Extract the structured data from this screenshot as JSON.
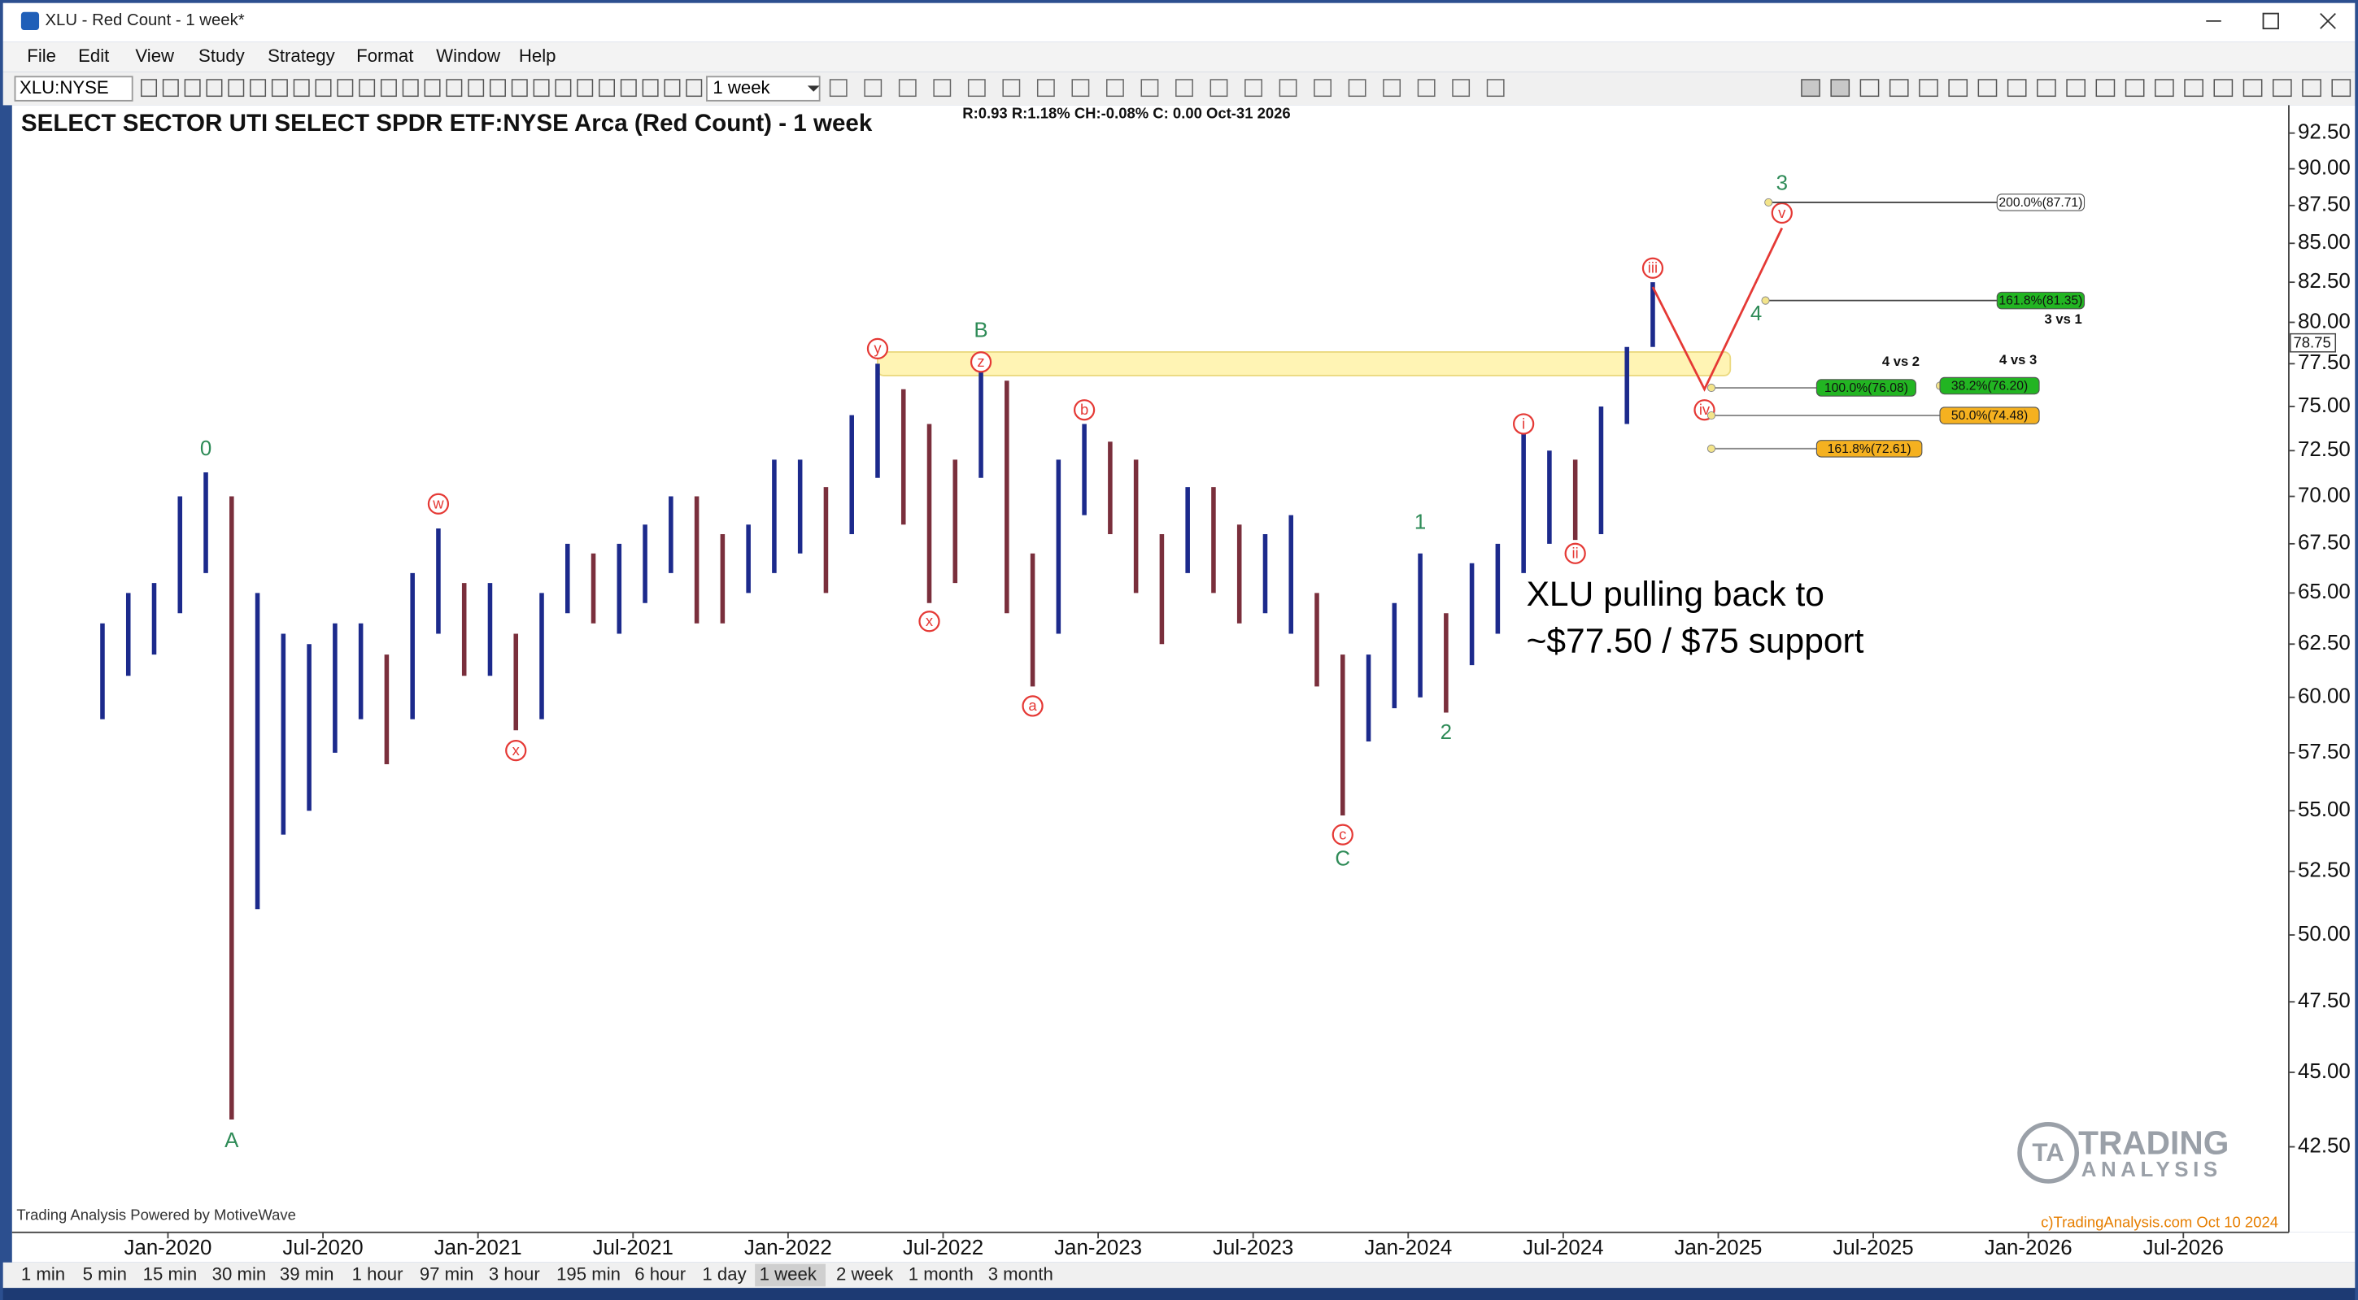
{
  "window": {
    "title": "XLU - Red Count - 1 week*"
  },
  "menu": [
    "File",
    "Edit",
    "View",
    "Study",
    "Strategy",
    "Format",
    "Window",
    "Help"
  ],
  "toolbar": {
    "symbol": "XLU:NYSE",
    "interval": "1 week"
  },
  "timeframes": [
    "1 min",
    "5 min",
    "15 min",
    "30 min",
    "39 min",
    "1 hour",
    "97 min",
    "3 hour",
    "195 min",
    "6 hour",
    "1 day",
    "1 week",
    "2 week",
    "1 month",
    "3 month"
  ],
  "active_timeframe": "1 week",
  "chart_data": {
    "type": "ohlc",
    "title": "SELECT SECTOR UTI SELECT SPDR ETF:NYSE Arca (Red Count) - 1 week",
    "info": "R:0.93 R:1.18% CH:-0.08% C: 0.00 Oct-31 2026",
    "last_price": {
      "value": 78.75,
      "label": "78.75"
    },
    "log_scale": true,
    "up_color": "#1c2a8c",
    "down_color": "#7a2f3c",
    "x": [
      "2019-10",
      "2019-11",
      "2019-12",
      "2020-01",
      "2020-02",
      "2020-03",
      "2020-04",
      "2020-05",
      "2020-06",
      "2020-07",
      "2020-08",
      "2020-09",
      "2020-10",
      "2020-11",
      "2020-12",
      "2021-01",
      "2021-02",
      "2021-03",
      "2021-04",
      "2021-05",
      "2021-06",
      "2021-07",
      "2021-08",
      "2021-09",
      "2021-10",
      "2021-11",
      "2021-12",
      "2022-01",
      "2022-02",
      "2022-03",
      "2022-04",
      "2022-05",
      "2022-06",
      "2022-07",
      "2022-08",
      "2022-09",
      "2022-10",
      "2022-11",
      "2022-12",
      "2023-01",
      "2023-02",
      "2023-03",
      "2023-04",
      "2023-05",
      "2023-06",
      "2023-07",
      "2023-08",
      "2023-09",
      "2023-10",
      "2023-11",
      "2023-12",
      "2024-01",
      "2024-02",
      "2024-03",
      "2024-04",
      "2024-05",
      "2024-06",
      "2024-07",
      "2024-08",
      "2024-09",
      "2024-10"
    ],
    "high": [
      63.5,
      65,
      65.5,
      70,
      71.3,
      70,
      65,
      63,
      62.5,
      63.5,
      63.5,
      62,
      66,
      68.3,
      65.5,
      65.5,
      63,
      65,
      67.5,
      67,
      67.5,
      68.5,
      70,
      70,
      68,
      68.5,
      72,
      72,
      70.5,
      74.5,
      77.5,
      76,
      74,
      72,
      78,
      76.5,
      67,
      72,
      74,
      73,
      72,
      68,
      70.5,
      70.5,
      68.5,
      68,
      69,
      65,
      62,
      62,
      64.5,
      67,
      64,
      66.5,
      67.5,
      73.5,
      72.5,
      72,
      75,
      78.5,
      82.5
    ],
    "low": [
      59,
      61,
      62,
      64,
      66,
      43.4,
      51,
      54,
      55,
      57.5,
      59,
      57,
      59,
      63,
      61,
      61,
      58.5,
      59,
      64,
      63.5,
      63,
      64.5,
      66,
      63.5,
      63.5,
      65,
      66,
      67,
      65,
      68,
      71,
      68.5,
      64.5,
      65.5,
      71,
      64,
      60.5,
      63,
      69,
      68,
      65,
      62.5,
      66,
      65,
      63.5,
      64,
      63,
      60.5,
      54.8,
      58,
      59.5,
      60,
      59.3,
      61.5,
      63,
      66,
      67.5,
      67.7,
      68,
      74,
      78.5
    ],
    "xlim": [
      "2019-07",
      "2026-11"
    ],
    "xticks": [
      {
        "value": "2020-01",
        "label": "Jan-2020"
      },
      {
        "value": "2020-07",
        "label": "Jul-2020"
      },
      {
        "value": "2021-01",
        "label": "Jan-2021"
      },
      {
        "value": "2021-07",
        "label": "Jul-2021"
      },
      {
        "value": "2022-01",
        "label": "Jan-2022"
      },
      {
        "value": "2022-07",
        "label": "Jul-2022"
      },
      {
        "value": "2023-01",
        "label": "Jan-2023"
      },
      {
        "value": "2023-07",
        "label": "Jul-2023"
      },
      {
        "value": "2024-01",
        "label": "Jan-2024"
      },
      {
        "value": "2024-07",
        "label": "Jul-2024"
      },
      {
        "value": "2025-01",
        "label": "Jan-2025"
      },
      {
        "value": "2025-07",
        "label": "Jul-2025"
      },
      {
        "value": "2026-01",
        "label": "Jan-2026"
      },
      {
        "value": "2026-07",
        "label": "Jul-2026"
      }
    ],
    "ylim": [
      39.8,
      94.5
    ],
    "yticks": [
      {
        "value": 42.5,
        "label": "42.50"
      },
      {
        "value": 45,
        "label": "45.00"
      },
      {
        "value": 47.5,
        "label": "47.50"
      },
      {
        "value": 50,
        "label": "50.00"
      },
      {
        "value": 52.5,
        "label": "52.50"
      },
      {
        "value": 55,
        "label": "55.00"
      },
      {
        "value": 57.5,
        "label": "57.50"
      },
      {
        "value": 60,
        "label": "60.00"
      },
      {
        "value": 62.5,
        "label": "62.50"
      },
      {
        "value": 65,
        "label": "65.00"
      },
      {
        "value": 67.5,
        "label": "67.50"
      },
      {
        "value": 70,
        "label": "70.00"
      },
      {
        "value": 72.5,
        "label": "72.50"
      },
      {
        "value": 75,
        "label": "75.00"
      },
      {
        "value": 77.5,
        "label": "77.50"
      },
      {
        "value": 80,
        "label": "80.00"
      },
      {
        "value": 82.5,
        "label": "82.50"
      },
      {
        "value": 85,
        "label": "85.00"
      },
      {
        "value": 87.5,
        "label": "87.50"
      },
      {
        "value": 90,
        "label": "90.00"
      },
      {
        "value": 92.5,
        "label": "92.50"
      }
    ],
    "zone": {
      "x": [
        "2022-04",
        "2025-01"
      ],
      "y": [
        76.8,
        78.2
      ],
      "color": "#fff3a8"
    },
    "projection": {
      "x": [
        "2024-10",
        "2024-12",
        "2025-03"
      ],
      "y": [
        82.2,
        76.0,
        86.0
      ],
      "color": "#e53935"
    },
    "waves": [
      {
        "label": "0",
        "x": "2020-02",
        "y": 72.6,
        "color": "#2e8b57",
        "circle": false
      },
      {
        "label": "A",
        "x": "2020-03",
        "y": 42.7,
        "color": "#2e8b57",
        "circle": false
      },
      {
        "label": "w",
        "x": "2020-11",
        "y": 69.6,
        "color": "#e53935",
        "circle": true
      },
      {
        "label": "x",
        "x": "2021-02",
        "y": 57.6,
        "color": "#e53935",
        "circle": true
      },
      {
        "label": "y",
        "x": "2022-04",
        "y": 78.4,
        "color": "#e53935",
        "circle": true
      },
      {
        "label": "x",
        "x": "2022-06",
        "y": 63.6,
        "color": "#e53935",
        "circle": true
      },
      {
        "label": "z",
        "x": "2022-08",
        "y": 77.6,
        "color": "#e53935",
        "circle": true
      },
      {
        "label": "B",
        "x": "2022-08",
        "y": 79.5,
        "color": "#2e8b57",
        "circle": false
      },
      {
        "label": "b",
        "x": "2022-12",
        "y": 74.8,
        "color": "#e53935",
        "circle": true
      },
      {
        "label": "a",
        "x": "2022-10",
        "y": 59.6,
        "color": "#e53935",
        "circle": true
      },
      {
        "label": "c",
        "x": "2023-10",
        "y": 54.0,
        "color": "#e53935",
        "circle": true
      },
      {
        "label": "C",
        "x": "2023-10",
        "y": 53.0,
        "color": "#2e8b57",
        "circle": false
      },
      {
        "label": "1",
        "x": "2024-01",
        "y": 68.6,
        "color": "#2e8b57",
        "circle": false
      },
      {
        "label": "2",
        "x": "2024-02",
        "y": 58.4,
        "color": "#2e8b57",
        "circle": false
      },
      {
        "label": "i",
        "x": "2024-05",
        "y": 74.0,
        "color": "#e53935",
        "circle": true
      },
      {
        "label": "ii",
        "x": "2024-07",
        "y": 67.0,
        "color": "#e53935",
        "circle": true
      },
      {
        "label": "iii",
        "x": "2024-10",
        "y": 83.4,
        "color": "#e53935",
        "circle": true
      },
      {
        "label": "iv",
        "x": "2024-12",
        "y": 74.8,
        "color": "#e53935",
        "circle": true
      },
      {
        "label": "4",
        "x": "2025-02",
        "y": 80.5,
        "color": "#2e8b57",
        "circle": false
      },
      {
        "label": "v",
        "x": "2025-03",
        "y": 87.0,
        "color": "#e53935",
        "circle": true
      },
      {
        "label": "3",
        "x": "2025-03",
        "y": 89.0,
        "color": "#2e8b57",
        "circle": false
      }
    ],
    "fibs": [
      {
        "value": 87.71,
        "label": "200.0%(87.71)",
        "color": "#ffffff"
      },
      {
        "value": 81.35,
        "label": "161.8%(81.35)",
        "color": "#22b522"
      },
      {
        "value": 76.08,
        "label": "100.0%(76.08)",
        "color": "#22b522"
      },
      {
        "value": 76.2,
        "label": "38.2%(76.20)",
        "color": "#22b522"
      },
      {
        "value": 74.48,
        "label": "50.0%(74.48)",
        "color": "#f5b120"
      },
      {
        "value": 72.61,
        "label": "161.8%(72.61)",
        "color": "#f5b120"
      }
    ],
    "fib_groups": [
      "3 vs 1",
      "4 vs 2",
      "4 vs 3"
    ],
    "annotation": [
      "XLU pulling back  to",
      "~$77.50  / $75 support"
    ],
    "footer_left": "Trading Analysis Powered by MotiveWave",
    "footer_right": "c)TradingAnalysis.com Oct 10 2024",
    "logo": [
      "TRADING",
      "ANALYSIS"
    ]
  }
}
